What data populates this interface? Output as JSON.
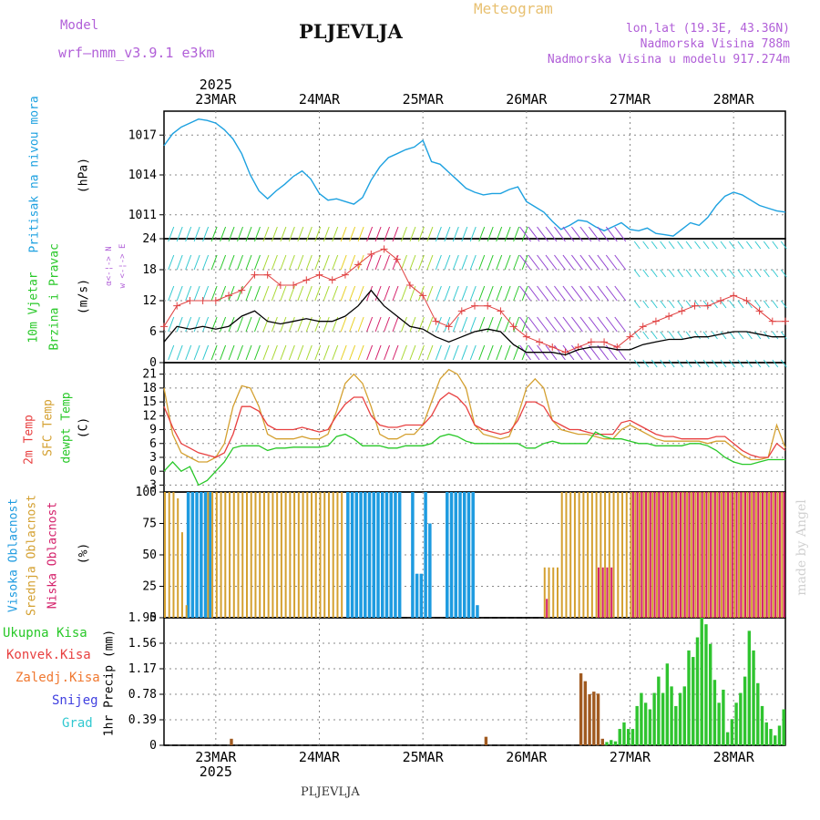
{
  "header": {
    "model_label": "Model",
    "model_name": "wrf—nmm_v3.9.1 e3km",
    "station": "PLJEVLJA",
    "meteogram": "Meteogram",
    "lonlat": "lon,lat (19.3E, 43.36N)",
    "elevation": "Nadmorska Visina 788m",
    "model_elevation": "Nadmorska Visina u modelu 917.274m"
  },
  "footer": {
    "station": "PLJEVLJA",
    "watermark": "made by Angel"
  },
  "time_axis": {
    "year": "2025",
    "days": [
      "23MAR",
      "24MAR",
      "25MAR",
      "26MAR",
      "27MAR",
      "28MAR"
    ],
    "day_positions_hours": [
      12,
      36,
      60,
      84,
      108,
      132
    ],
    "total_hours": 144
  },
  "panel_labels": {
    "pressure": {
      "title": "Pritisak na nivou mora",
      "unit": "(hPa)"
    },
    "wind": {
      "title1": "10m Vjetar",
      "title2": "Brzina i Pravac",
      "unit": "(m/s)",
      "compass": "w <-¦-> E",
      "compass_ns": "α<-¦-> N"
    },
    "temp": {
      "t2m": "2m Temp",
      "sfc": "SFC Temp",
      "dew": "dewpt Temp",
      "unit": "(C)"
    },
    "cloud": {
      "high": "Visoka Oblacnost",
      "mid": "Srednja Oblacnost",
      "low": "Niska Oblacnost",
      "unit": "(%)"
    },
    "precip": {
      "unit": "1hr Precip (mm)",
      "legend": [
        "Ukupna Kisa",
        "Konvek.Kisa",
        "Zaledj.Kisa",
        "Snijeg",
        "Grad"
      ]
    }
  },
  "colors": {
    "pressure": "#1da1e0",
    "temp2m": "#e84040",
    "sfc": "#d4a030",
    "dew": "#28c828",
    "wind_mean": "#000000",
    "gust": "#e04040",
    "precip": "#2fc42f",
    "precip_conv": "#a05a20",
    "cloud_high": "#1e9be0",
    "cloud_mid": "#d4a030",
    "cloud_low": "#d4206a",
    "grid": "#888888",
    "purple": "#b15fd8"
  },
  "chart_data": [
    {
      "type": "line",
      "title": "Pritisak na nivou mora",
      "ylabel": "(hPa)",
      "ylim": [
        1009.2,
        1018.8
      ],
      "yticks": [
        1011,
        1014,
        1017
      ],
      "x": [
        0,
        2,
        4,
        6,
        8,
        10,
        12,
        14,
        16,
        18,
        20,
        22,
        24,
        26,
        28,
        30,
        32,
        34,
        36,
        38,
        40,
        42,
        44,
        46,
        48,
        50,
        52,
        54,
        56,
        58,
        60,
        62,
        64,
        66,
        68,
        70,
        72,
        74,
        76,
        78,
        80,
        82,
        84,
        86,
        88,
        90,
        92,
        94,
        96,
        98,
        100,
        102,
        104,
        106,
        108,
        110,
        112,
        114,
        116,
        118,
        120,
        122,
        124,
        126,
        128,
        130,
        132,
        134,
        136,
        138,
        140,
        142,
        144
      ],
      "y": [
        1016.2,
        1017.1,
        1017.6,
        1017.9,
        1018.2,
        1018.1,
        1017.9,
        1017.4,
        1016.7,
        1015.6,
        1014.0,
        1012.8,
        1012.2,
        1012.8,
        1013.3,
        1013.9,
        1014.3,
        1013.7,
        1012.6,
        1012.1,
        1012.2,
        1012.0,
        1011.8,
        1012.3,
        1013.6,
        1014.6,
        1015.3,
        1015.6,
        1015.9,
        1016.1,
        1016.6,
        1015.0,
        1014.8,
        1014.2,
        1013.6,
        1013.0,
        1012.7,
        1012.5,
        1012.6,
        1012.6,
        1012.9,
        1013.1,
        1012.0,
        1011.6,
        1011.2,
        1010.5,
        1009.9,
        1010.2,
        1010.6,
        1010.5,
        1010.1,
        1009.8,
        1010.1,
        1010.4,
        1009.9,
        1009.8,
        1010.0,
        1009.6,
        1009.5,
        1009.4,
        1009.9,
        1010.4,
        1010.2,
        1010.8,
        1011.7,
        1012.4,
        1012.7,
        1012.5,
        1012.1,
        1011.7,
        1011.5,
        1011.3,
        1011.2
      ]
    },
    {
      "type": "line",
      "title": "10m Vjetar Brzina i Pravac",
      "ylabel": "(m/s)",
      "ylim": [
        0,
        24
      ],
      "yticks": [
        0,
        6,
        12,
        18,
        24
      ],
      "x": [
        0,
        3,
        6,
        9,
        12,
        15,
        18,
        21,
        24,
        27,
        30,
        33,
        36,
        39,
        42,
        45,
        48,
        51,
        54,
        57,
        60,
        63,
        66,
        69,
        72,
        75,
        78,
        81,
        84,
        87,
        90,
        93,
        96,
        99,
        102,
        105,
        108,
        111,
        114,
        117,
        120,
        123,
        126,
        129,
        132,
        135,
        138,
        141,
        144
      ],
      "series": [
        {
          "name": "mean wind",
          "values": [
            4,
            7,
            6.5,
            7,
            6.5,
            7,
            9,
            10,
            8,
            7.5,
            8,
            8.5,
            8,
            8,
            9,
            11,
            14,
            11,
            9,
            7,
            6.5,
            5,
            4,
            5,
            6,
            6.5,
            6,
            3.5,
            2,
            2,
            2,
            1.5,
            2.5,
            3,
            3,
            2.5,
            2.5,
            3.5,
            4,
            4.5,
            4.5,
            5,
            5,
            5.5,
            6,
            6,
            5.5,
            5,
            5
          ]
        },
        {
          "name": "gust",
          "values": [
            7,
            11,
            12,
            12,
            12,
            13,
            14,
            17,
            17,
            15,
            15,
            16,
            17,
            16,
            17,
            19,
            21,
            22,
            20,
            15,
            13,
            8,
            7,
            10,
            11,
            11,
            10,
            7,
            5,
            4,
            3,
            2,
            3,
            4,
            4,
            3,
            5,
            7,
            8,
            9,
            10,
            11,
            11,
            12,
            13,
            12,
            10,
            8,
            8
          ]
        }
      ]
    },
    {
      "type": "line",
      "title": "Temperature",
      "ylabel": "(C)",
      "ylim": [
        -4.5,
        23.5
      ],
      "yticks": [
        -3,
        0,
        3,
        6,
        9,
        12,
        15,
        18,
        21
      ],
      "x": [
        0,
        2,
        4,
        6,
        8,
        10,
        12,
        14,
        16,
        18,
        20,
        22,
        24,
        26,
        28,
        30,
        32,
        34,
        36,
        38,
        40,
        42,
        44,
        46,
        48,
        50,
        52,
        54,
        56,
        58,
        60,
        62,
        64,
        66,
        68,
        70,
        72,
        74,
        76,
        78,
        80,
        82,
        84,
        86,
        88,
        90,
        92,
        94,
        96,
        98,
        100,
        102,
        104,
        106,
        108,
        110,
        112,
        114,
        116,
        118,
        120,
        122,
        124,
        126,
        128,
        130,
        132,
        134,
        136,
        138,
        140,
        142,
        144
      ],
      "series": [
        {
          "name": "2m Temp",
          "values": [
            14,
            9.5,
            6,
            5,
            4,
            3.5,
            3,
            4,
            8,
            14,
            14,
            13,
            10,
            9,
            9,
            9,
            9.5,
            9,
            8.5,
            9,
            12,
            14.5,
            16,
            16,
            12,
            10,
            9.5,
            9.5,
            10,
            10,
            10,
            12,
            15.5,
            17,
            16,
            14,
            10,
            9,
            8.5,
            8,
            8.5,
            11,
            15,
            15,
            14,
            11,
            10,
            9,
            9,
            8.5,
            8,
            8,
            8,
            10.5,
            11,
            10,
            9,
            8,
            7.5,
            7.5,
            7,
            7,
            7,
            7,
            7.5,
            7.5,
            6,
            4.5,
            3.5,
            3,
            3,
            6,
            4.5
          ]
        },
        {
          "name": "SFC Temp",
          "values": [
            18,
            8,
            4,
            3,
            2,
            2,
            3,
            6,
            14,
            18.5,
            18,
            14,
            8,
            7,
            7,
            7,
            7.5,
            7,
            7,
            8,
            13,
            19,
            21,
            19,
            14,
            8,
            7,
            7,
            8,
            8,
            10,
            15,
            20,
            22,
            21,
            18,
            10,
            8,
            7.5,
            7,
            7.5,
            12,
            18,
            20,
            18,
            11,
            9,
            8.5,
            8,
            8,
            7.5,
            7,
            7,
            9,
            10,
            9,
            8,
            7,
            6.5,
            6.5,
            6.5,
            6.5,
            6.5,
            6,
            6.5,
            6.5,
            5,
            3.5,
            2.5,
            2.5,
            3,
            10,
            5
          ]
        },
        {
          "name": "dewpt Temp",
          "values": [
            0,
            2,
            0,
            1,
            -3,
            -2,
            0,
            2,
            5,
            5.5,
            5.5,
            5.5,
            4.5,
            5,
            5,
            5.2,
            5.2,
            5.2,
            5.2,
            5.5,
            7.5,
            8,
            7,
            5.5,
            5.5,
            5.5,
            5,
            5,
            5.5,
            5.5,
            5.5,
            6,
            7.5,
            8,
            7.5,
            6.5,
            6,
            6,
            6,
            6,
            6,
            6,
            5,
            5,
            6,
            6.5,
            6,
            6,
            6,
            6,
            8.5,
            7.5,
            7,
            7,
            6.5,
            6,
            6,
            5.5,
            5.5,
            5.5,
            5.5,
            6,
            6,
            5.5,
            4.5,
            3,
            2,
            1.5,
            1.5,
            2,
            2.5,
            2.5,
            2.5
          ]
        }
      ]
    },
    {
      "type": "bar",
      "title": "Oblacnost",
      "ylabel": "(%)",
      "ylim": [
        0,
        100
      ],
      "yticks": [
        0,
        25,
        50,
        75,
        100
      ],
      "series": [
        {
          "name": "Visoka Oblacnost",
          "segments": [
            [
              5,
              11,
              100
            ],
            [
              42,
              55,
              100
            ],
            [
              57,
              58,
              100
            ],
            [
              58,
              60,
              35
            ],
            [
              60,
              61,
              100
            ],
            [
              61,
              62,
              75
            ],
            [
              65,
              72,
              100
            ],
            [
              72,
              73,
              10
            ]
          ]
        },
        {
          "name": "Srednja Oblacnost",
          "segments": [
            [
              0,
              3,
              100
            ],
            [
              3,
              4,
              95
            ],
            [
              4,
              5,
              68
            ],
            [
              5,
              6,
              10
            ],
            [
              10,
              30,
              100
            ],
            [
              30,
              36,
              100
            ],
            [
              36,
              42,
              100
            ],
            [
              88,
              92,
              40
            ],
            [
              92,
              100,
              100
            ],
            [
              100,
              135,
              100
            ],
            [
              135,
              144,
              100
            ]
          ]
        },
        {
          "name": "Niska Oblacnost",
          "segments": [
            [
              108,
              144,
              100
            ],
            [
              100,
              104,
              40
            ],
            [
              88,
              89,
              15
            ]
          ]
        }
      ]
    },
    {
      "type": "bar",
      "title": "1hr Precip",
      "ylabel": "(mm)",
      "ylim": [
        0,
        1.95
      ],
      "yticks": [
        0,
        0.39,
        0.78,
        1.17,
        1.56,
        1.95
      ],
      "x": [
        16,
        75,
        97,
        98,
        99,
        100,
        101,
        102,
        103,
        104,
        105,
        106,
        107,
        108,
        109,
        110,
        111,
        112,
        113,
        114,
        115,
        116,
        117,
        118,
        119,
        120,
        121,
        122,
        123,
        124,
        125,
        126,
        127,
        128,
        129,
        130,
        131,
        132,
        133,
        134,
        135,
        136,
        137,
        138,
        139,
        140,
        141,
        142,
        143,
        144
      ],
      "values": [
        0.1,
        0.13,
        1.1,
        0.98,
        0.78,
        0.82,
        0.79,
        0.1,
        0.05,
        0.08,
        0.06,
        0.25,
        0.35,
        0.25,
        0.25,
        0.6,
        0.8,
        0.65,
        0.55,
        0.8,
        1.05,
        0.8,
        1.25,
        0.9,
        0.6,
        0.8,
        0.9,
        1.45,
        1.35,
        1.65,
        1.95,
        1.85,
        1.55,
        1.0,
        0.65,
        0.85,
        0.2,
        0.4,
        0.65,
        0.8,
        1.05,
        1.75,
        1.45,
        0.95,
        0.6,
        0.35,
        0.25,
        0.15,
        0.3,
        0.55
      ]
    }
  ]
}
